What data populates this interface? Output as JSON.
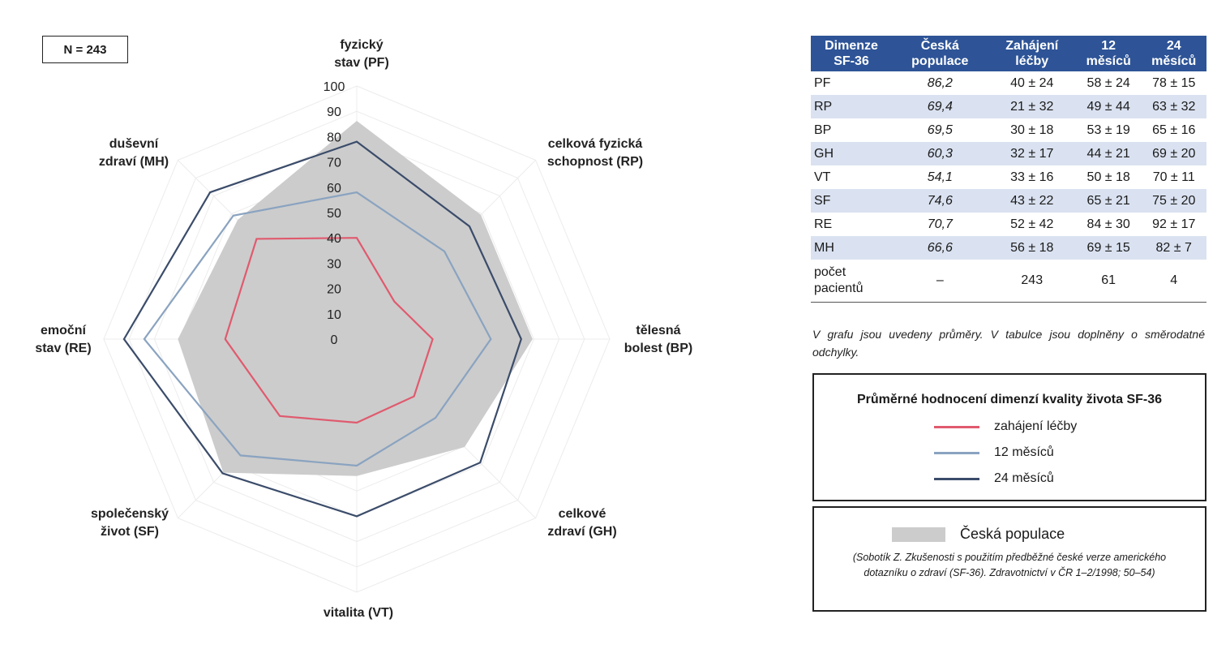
{
  "n_label": "N = 243",
  "chart_data": {
    "type": "radar",
    "rmax": 100,
    "ticks": [
      0,
      10,
      20,
      30,
      40,
      50,
      60,
      70,
      80,
      90,
      100
    ],
    "axes": [
      {
        "key": "PF",
        "label": [
          "fyzický",
          "stav (PF)"
        ]
      },
      {
        "key": "RP",
        "label": [
          "celková fyzická",
          "schopnost (RP)"
        ]
      },
      {
        "key": "BP",
        "label": [
          "tělesná",
          "bolest (BP)"
        ]
      },
      {
        "key": "GH",
        "label": [
          "celkové",
          "zdraví (GH)"
        ]
      },
      {
        "key": "VT",
        "label": [
          "vitalita (VT)"
        ]
      },
      {
        "key": "SF",
        "label": [
          "společenský",
          "život (SF)"
        ]
      },
      {
        "key": "RE",
        "label": [
          "emoční",
          "stav (RE)"
        ]
      },
      {
        "key": "MH",
        "label": [
          "duševní",
          "zdraví (MH)"
        ]
      }
    ],
    "population": {
      "name": "Česká populace",
      "color": "#cccccc",
      "values": [
        86.2,
        69.4,
        69.5,
        60.3,
        54.1,
        74.6,
        70.7,
        66.6
      ]
    },
    "series": [
      {
        "name": "zahájení léčby",
        "color": "#e05a6e",
        "values": [
          40,
          21,
          30,
          32,
          33,
          43,
          52,
          56
        ]
      },
      {
        "name": "12 měsíců",
        "color": "#8aa3c0",
        "values": [
          58,
          49,
          53,
          44,
          50,
          65,
          84,
          69
        ]
      },
      {
        "name": "24 měsíců",
        "color": "#3b4c6a",
        "values": [
          78,
          63,
          65,
          69,
          70,
          75,
          92,
          82
        ]
      }
    ]
  },
  "table": {
    "headers": [
      "Dimenze SF-36",
      "Česká populace",
      "Zahájení léčby",
      "12 měsíců",
      "24 měsíců"
    ],
    "rows": [
      [
        "PF",
        "86,2",
        "40 ± 24",
        "58 ± 24",
        "78 ± 15"
      ],
      [
        "RP",
        "69,4",
        "21 ± 32",
        "49 ± 44",
        "63 ± 32"
      ],
      [
        "BP",
        "69,5",
        "30 ± 18",
        "53 ± 19",
        "65 ± 16"
      ],
      [
        "GH",
        "60,3",
        "32 ± 17",
        "44 ± 21",
        "69 ± 20"
      ],
      [
        "VT",
        "54,1",
        "33 ± 16",
        "50 ± 18",
        "70 ± 11"
      ],
      [
        "SF",
        "74,6",
        "43 ± 22",
        "65 ± 21",
        "75 ± 20"
      ],
      [
        "RE",
        "70,7",
        "52 ± 42",
        "84 ± 30",
        "92 ± 17"
      ],
      [
        "MH",
        "66,6",
        "56 ± 18",
        "69 ± 15",
        "82 ± 7"
      ]
    ],
    "count_row": [
      "počet pacientů",
      "–",
      "243",
      "61",
      "4"
    ]
  },
  "table_note": "V grafu jsou uvedeny průměry. V tabulce jsou doplněny o směrodatné odchylky.",
  "legend": {
    "title": "Průměrné hodnocení dimenzí kvality života SF-36",
    "population_label": "Česká populace",
    "citation": "(Sobotík Z. Zkušenosti s použitím předběžné české verze amerického dotazníku o zdraví (SF-36). Zdravotnictví v ČR 1–2/1998; 50–54)"
  }
}
